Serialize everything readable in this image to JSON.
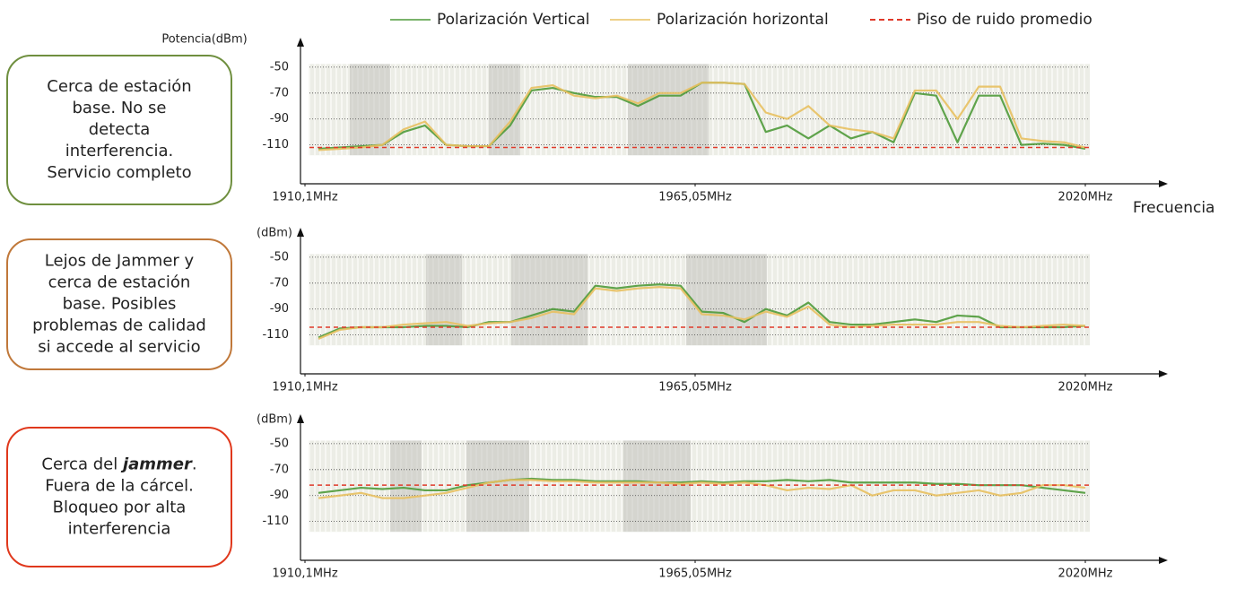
{
  "legend": [
    {
      "name": "Polarización Vertical",
      "color": "#4f9a3a",
      "style": "solid"
    },
    {
      "name": "Polarización horizontal",
      "color": "#e8c060",
      "style": "solid"
    },
    {
      "name": "Piso de ruido promedio",
      "color": "#e03a2a",
      "style": "dashed"
    }
  ],
  "chart_data": [
    {
      "type": "line",
      "ylabel": "Potencia(dBm)",
      "xlabel": "Frecuencia",
      "annotation": {
        "color": "#6f8f3f",
        "lines": [
          [
            "Cerca de estación"
          ],
          [
            "base. No se"
          ],
          [
            "detecta"
          ],
          [
            "interferencia."
          ],
          [
            "Servicio completo"
          ]
        ]
      },
      "xlim": [
        1910.1,
        2020
      ],
      "xticks": [
        {
          "value": 1910.1,
          "label": "1910,1MHz"
        },
        {
          "value": 1965.05,
          "label": "1965,05MHz"
        },
        {
          "value": 2020,
          "label": "2020MHz"
        }
      ],
      "ylim": [
        -140,
        -30
      ],
      "yticks": [
        -50,
        -70,
        -90,
        -110
      ],
      "grid": true,
      "x": [
        1912,
        1915,
        1918,
        1921,
        1924,
        1927,
        1930,
        1933,
        1936,
        1939,
        1942,
        1945,
        1948,
        1951,
        1954,
        1957,
        1960,
        1963,
        1966,
        1969,
        1972,
        1975,
        1978,
        1981,
        1984,
        1987,
        1990,
        1993,
        1996,
        1999,
        2002,
        2005,
        2008,
        2011,
        2014,
        2017,
        2020
      ],
      "series": [
        {
          "color": "#4f9a3a",
          "values": [
            -113,
            -112,
            -111,
            -110,
            -100,
            -95,
            -110,
            -111,
            -111,
            -95,
            -68,
            -66,
            -70,
            -73,
            -73,
            -80,
            -72,
            -72,
            -62,
            -62,
            -63,
            -100,
            -95,
            -105,
            -95,
            -105,
            -100,
            -108,
            -70,
            -72,
            -108,
            -72,
            -72,
            -110,
            -109,
            -110,
            -113
          ]
        },
        {
          "color": "#e8c060",
          "values": [
            -114,
            -113,
            -112,
            -110,
            -98,
            -92,
            -110,
            -111,
            -111,
            -92,
            -66,
            -64,
            -72,
            -74,
            -72,
            -78,
            -70,
            -70,
            -62,
            -62,
            -63,
            -85,
            -90,
            -80,
            -95,
            -98,
            -100,
            -105,
            -68,
            -68,
            -90,
            -65,
            -65,
            -105,
            -107,
            -108,
            -112
          ]
        }
      ],
      "noise_floor": {
        "color": "#e03a2a",
        "value": -112
      }
    },
    {
      "type": "line",
      "ylabel": "(dBm)",
      "annotation": {
        "color": "#c0783a",
        "lines": [
          [
            "Lejos de Jammer y"
          ],
          [
            "cerca de estación"
          ],
          [
            "base. Posibles"
          ],
          [
            "problemas de calidad"
          ],
          [
            "si accede al servicio"
          ]
        ]
      },
      "xlim": [
        1910.1,
        2020
      ],
      "xticks": [
        {
          "value": 1910.1,
          "label": "1910,1MHz"
        },
        {
          "value": 1965.05,
          "label": "1965,05MHz"
        },
        {
          "value": 2020,
          "label": "2020MHz"
        }
      ],
      "ylim": [
        -140,
        -30
      ],
      "yticks": [
        -50,
        -70,
        -90,
        -110
      ],
      "grid": true,
      "x": [
        1912,
        1915,
        1918,
        1921,
        1924,
        1927,
        1930,
        1933,
        1936,
        1939,
        1942,
        1945,
        1948,
        1951,
        1954,
        1957,
        1960,
        1963,
        1966,
        1969,
        1972,
        1975,
        1978,
        1981,
        1984,
        1987,
        1990,
        1993,
        1996,
        1999,
        2002,
        2005,
        2008,
        2011,
        2014,
        2017,
        2020
      ],
      "series": [
        {
          "color": "#4f9a3a",
          "values": [
            -112,
            -105,
            -104,
            -104,
            -104,
            -103,
            -103,
            -104,
            -100,
            -100,
            -95,
            -90,
            -92,
            -72,
            -74,
            -72,
            -71,
            -72,
            -92,
            -93,
            -100,
            -90,
            -95,
            -85,
            -100,
            -102,
            -102,
            -100,
            -98,
            -100,
            -95,
            -96,
            -104,
            -104,
            -104,
            -104,
            -103
          ]
        },
        {
          "color": "#e8c060",
          "values": [
            -113,
            -106,
            -104,
            -104,
            -102,
            -101,
            -100,
            -103,
            -101,
            -100,
            -97,
            -92,
            -94,
            -74,
            -76,
            -74,
            -73,
            -74,
            -94,
            -95,
            -98,
            -92,
            -96,
            -88,
            -102,
            -104,
            -103,
            -102,
            -102,
            -102,
            -100,
            -100,
            -103,
            -104,
            -103,
            -102,
            -103
          ]
        }
      ],
      "noise_floor": {
        "color": "#e03a2a",
        "value": -104
      }
    },
    {
      "type": "line",
      "ylabel": "(dBm)",
      "annotation": {
        "color": "#e0381c",
        "emphasis": [
          0,
          1
        ],
        "lines": [
          [
            "Cerca del ",
            "jammer",
            "."
          ],
          [
            "Fuera de la cárcel."
          ],
          [
            "Bloqueo por alta"
          ],
          [
            "interferencia"
          ]
        ]
      },
      "xlim": [
        1910.1,
        2020
      ],
      "xticks": [
        {
          "value": 1910.1,
          "label": "1910,1MHz"
        },
        {
          "value": 1965.05,
          "label": "1965,05MHz"
        },
        {
          "value": 2020,
          "label": "2020MHz"
        }
      ],
      "ylim": [
        -140,
        -30
      ],
      "yticks": [
        -50,
        -70,
        -90,
        -110
      ],
      "grid": true,
      "x": [
        1912,
        1915,
        1918,
        1921,
        1924,
        1927,
        1930,
        1933,
        1936,
        1939,
        1942,
        1945,
        1948,
        1951,
        1954,
        1957,
        1960,
        1963,
        1966,
        1969,
        1972,
        1975,
        1978,
        1981,
        1984,
        1987,
        1990,
        1993,
        1996,
        1999,
        2002,
        2005,
        2008,
        2011,
        2014,
        2017,
        2020
      ],
      "series": [
        {
          "color": "#4f9a3a",
          "values": [
            -88,
            -86,
            -84,
            -85,
            -84,
            -86,
            -86,
            -82,
            -80,
            -78,
            -77,
            -78,
            -78,
            -79,
            -79,
            -79,
            -80,
            -80,
            -79,
            -80,
            -79,
            -79,
            -78,
            -79,
            -78,
            -80,
            -80,
            -80,
            -80,
            -81,
            -81,
            -82,
            -82,
            -82,
            -84,
            -86,
            -88
          ]
        },
        {
          "color": "#e8c060",
          "values": [
            -92,
            -90,
            -88,
            -92,
            -92,
            -90,
            -88,
            -84,
            -80,
            -78,
            -78,
            -79,
            -79,
            -80,
            -80,
            -80,
            -80,
            -81,
            -80,
            -81,
            -80,
            -82,
            -86,
            -84,
            -85,
            -82,
            -90,
            -86,
            -86,
            -90,
            -88,
            -86,
            -90,
            -88,
            -82,
            -82,
            -84
          ]
        }
      ],
      "noise_floor": {
        "color": "#e03a2a",
        "value": -82
      }
    }
  ]
}
